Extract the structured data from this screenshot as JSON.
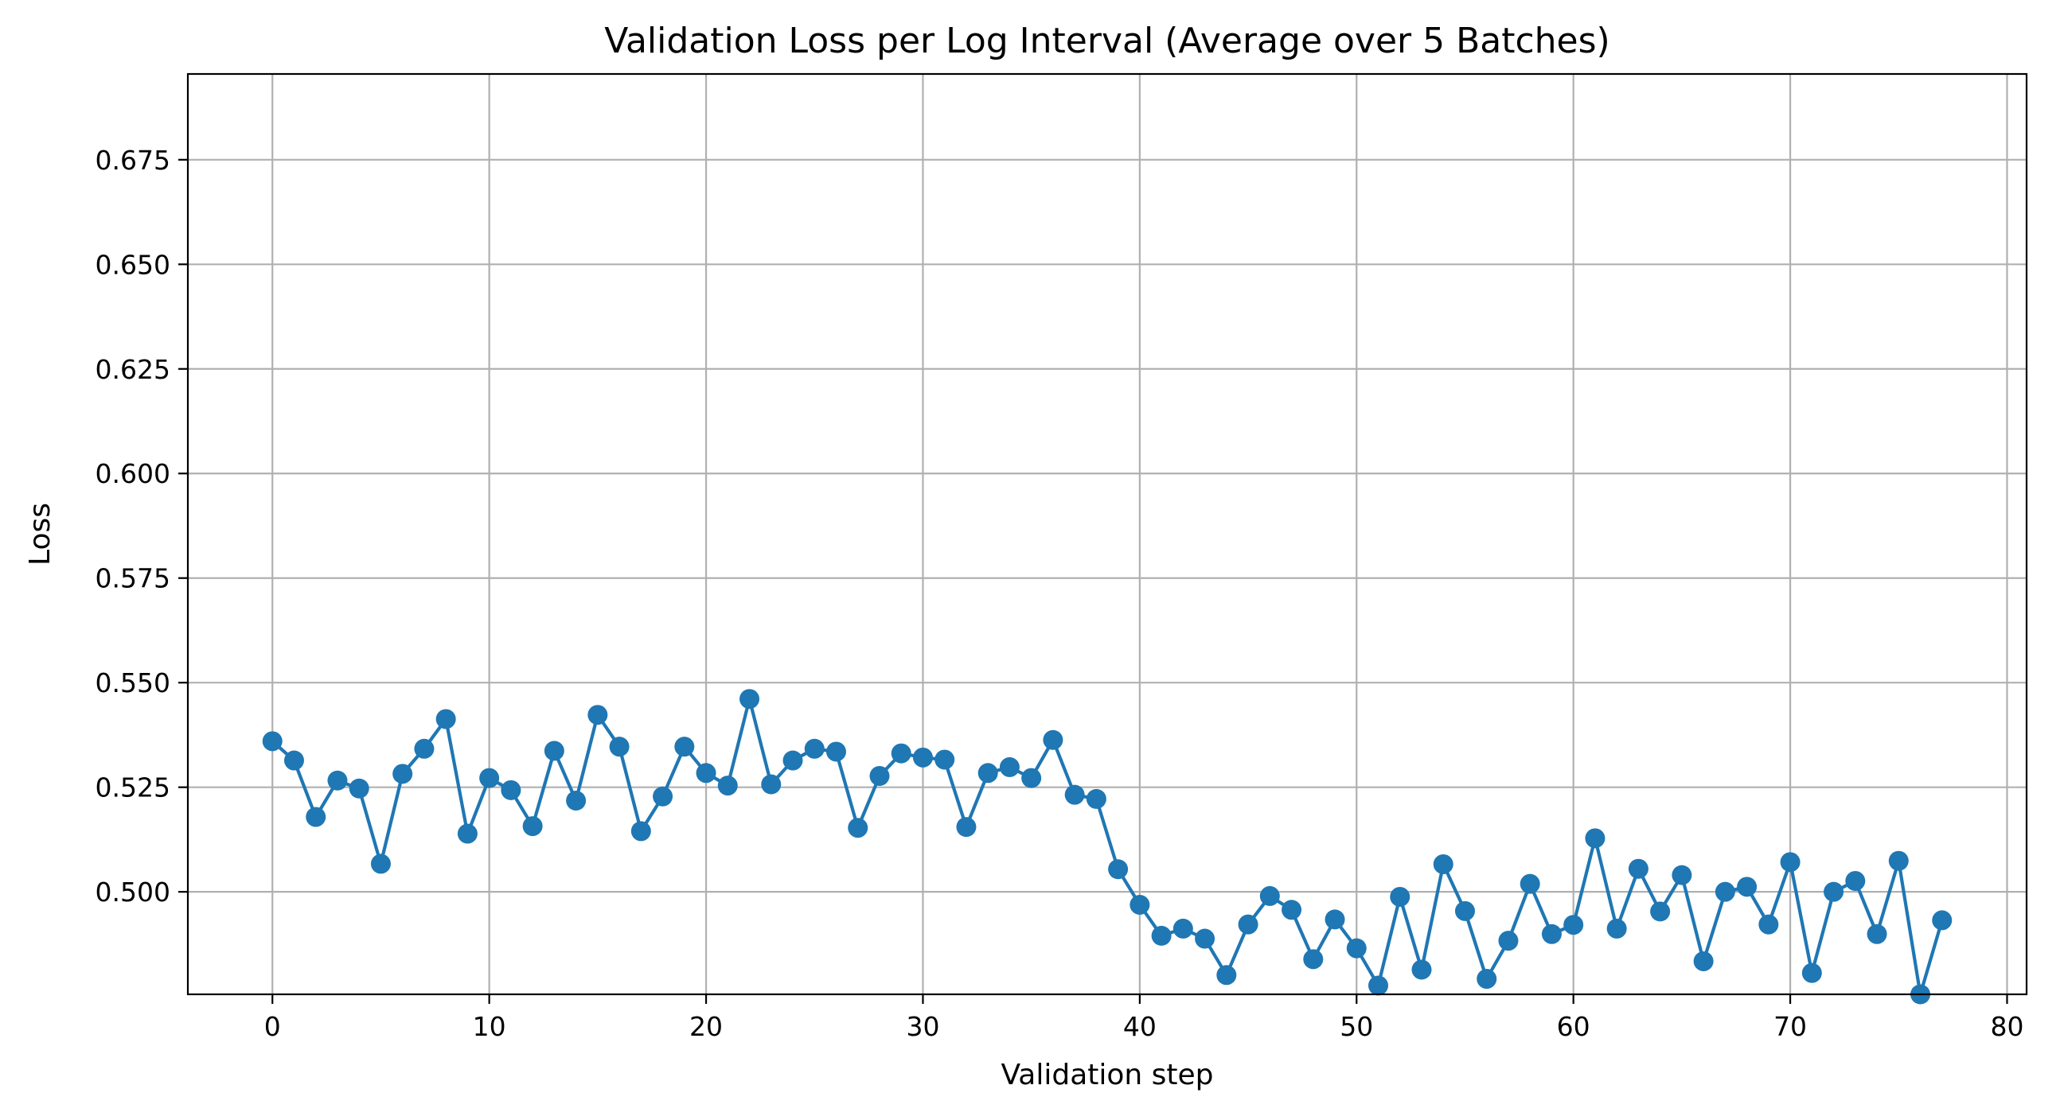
{
  "chart_data": {
    "type": "line",
    "title": "Validation Loss per Log Interval (Average over 5 Batches)",
    "xlabel": "Validation step",
    "ylabel": "Loss",
    "xlim": [
      -3.9,
      80.9
    ],
    "ylim": [
      0.4755,
      0.6955
    ],
    "xticks": [
      0,
      10,
      20,
      30,
      40,
      50,
      60,
      70,
      80
    ],
    "xtick_labels": [
      "0",
      "10",
      "20",
      "30",
      "40",
      "50",
      "60",
      "70",
      "80"
    ],
    "yticks": [
      0.5,
      0.525,
      0.55,
      0.575,
      0.6,
      0.625,
      0.65,
      0.675
    ],
    "ytick_labels": [
      "0.500",
      "0.525",
      "0.550",
      "0.575",
      "0.600",
      "0.625",
      "0.650",
      "0.675"
    ],
    "grid": true,
    "marker": "circle",
    "color": "#1f77b4",
    "x": [
      0,
      1,
      2,
      3,
      4,
      5,
      6,
      7,
      8,
      9,
      10,
      11,
      12,
      13,
      14,
      15,
      16,
      17,
      18,
      19,
      20,
      21,
      22,
      23,
      24,
      25,
      26,
      27,
      28,
      29,
      30,
      31,
      32,
      33,
      34,
      35,
      36,
      37,
      38,
      39,
      40,
      41,
      42,
      43,
      44,
      45,
      46,
      47,
      48,
      49,
      50,
      51,
      52,
      53,
      54,
      55,
      56,
      57,
      58,
      59,
      60,
      61,
      62,
      63,
      64,
      65,
      66,
      67,
      68,
      69,
      70,
      71,
      72,
      73,
      74,
      75,
      76,
      77
    ],
    "y": [
      0.536,
      0.5314,
      0.5179,
      0.5266,
      0.5247,
      0.5067,
      0.5282,
      0.5342,
      0.5413,
      0.5139,
      0.5272,
      0.5243,
      0.5157,
      0.5337,
      0.5218,
      0.5423,
      0.5347,
      0.5145,
      0.5228,
      0.5347,
      0.5284,
      0.5254,
      0.5461,
      0.5257,
      0.5314,
      0.5342,
      0.5335,
      0.5153,
      0.5277,
      0.5331,
      0.5321,
      0.5316,
      0.5155,
      0.5284,
      0.5298,
      0.5272,
      0.5363,
      0.5232,
      0.5222,
      0.5054,
      0.4969,
      0.4895,
      0.4912,
      0.4888,
      0.4801,
      0.4922,
      0.499,
      0.4957,
      0.4839,
      0.4934,
      0.4865,
      0.4776,
      0.4988,
      0.4814,
      0.5066,
      0.4954,
      0.4792,
      0.4883,
      0.5019,
      0.4899,
      0.4921,
      0.5128,
      0.4912,
      0.5055,
      0.4953,
      0.504,
      0.4834,
      0.5,
      0.5012,
      0.4922,
      0.5071,
      0.4806,
      0.5,
      0.5026,
      0.4899,
      0.5074,
      0.4755,
      0.4932
    ]
  }
}
